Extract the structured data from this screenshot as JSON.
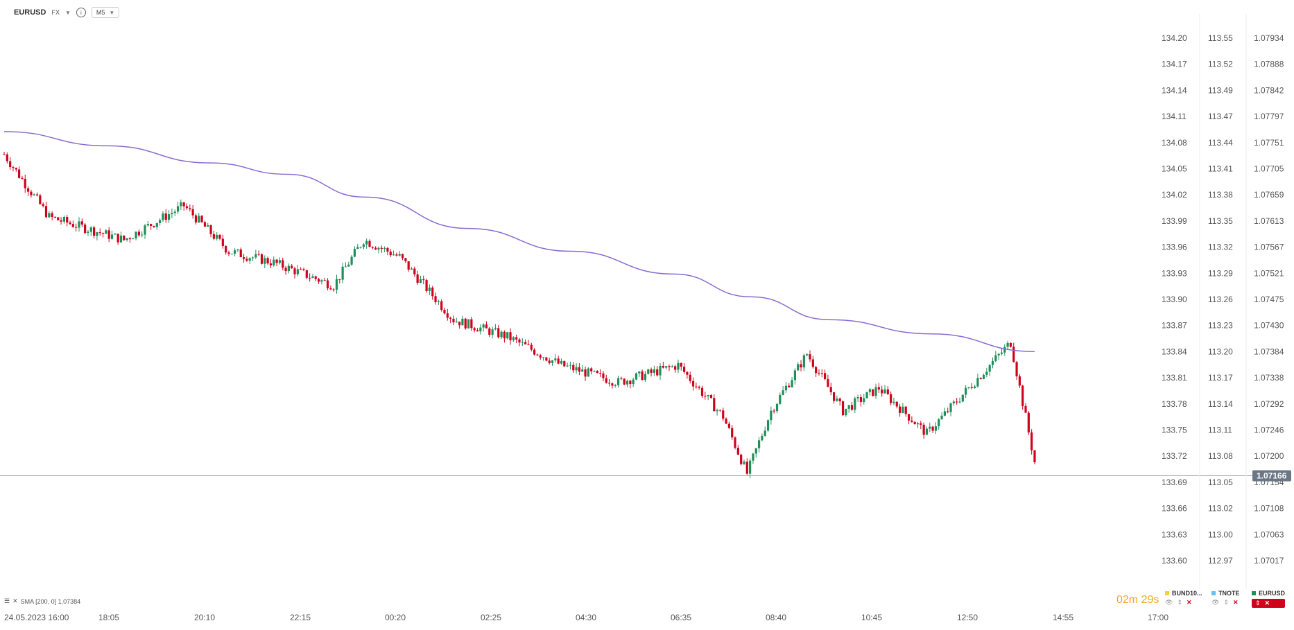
{
  "header": {
    "symbol": "EURUSD",
    "market": "FX",
    "timeframe": "M5"
  },
  "indicator": {
    "legend": "SMA [200, 0] 1.07384"
  },
  "timer": {
    "minutes": "02",
    "seconds": "29"
  },
  "price_tag": "1.07166",
  "colors": {
    "up": "#1e8f5a",
    "down": "#d0021b",
    "sma": "#8a6bd1",
    "price_line": "#999999",
    "timer": "#f5a623"
  },
  "instruments": [
    {
      "name": "BUND10...",
      "color": "#f5d328"
    },
    {
      "name": "TNOTE",
      "color": "#5fc3f5"
    },
    {
      "name": "EURUSD",
      "color": "#1e8f5a",
      "active": true
    }
  ],
  "chart_data": {
    "type": "candlestick",
    "x_ticks": [
      "24.05.2023  16:00",
      "18:05",
      "20:10",
      "22:15",
      "00:20",
      "02:25",
      "04:30",
      "06:35",
      "08:40",
      "10:45",
      "12:50",
      "14:55",
      "17:00"
    ],
    "y_axis_1": [
      "134.20",
      "134.17",
      "134.14",
      "134.11",
      "134.08",
      "134.05",
      "134.02",
      "133.99",
      "133.96",
      "133.93",
      "133.90",
      "133.87",
      "133.84",
      "133.81",
      "133.78",
      "133.75",
      "133.72",
      "133.69",
      "133.66",
      "133.63",
      "133.60"
    ],
    "y_axis_2": [
      "113.55",
      "113.52",
      "113.49",
      "113.47",
      "113.44",
      "113.41",
      "113.38",
      "113.35",
      "113.32",
      "113.29",
      "113.26",
      "113.23",
      "113.20",
      "113.17",
      "113.14",
      "113.11",
      "113.08",
      "113.05",
      "113.02",
      "113.00",
      "112.97"
    ],
    "y_axis_3": [
      "1.07934",
      "1.07888",
      "1.07842",
      "1.07797",
      "1.07751",
      "1.07705",
      "1.07659",
      "1.07613",
      "1.07567",
      "1.07521",
      "1.07475",
      "1.07430",
      "1.07384",
      "1.07338",
      "1.07292",
      "1.07246",
      "1.07200",
      "1.07154",
      "1.07108",
      "1.07063",
      "1.07017"
    ],
    "ylim": [
      1.07017,
      1.07934
    ],
    "current_price": 1.07166,
    "sma_200": [
      [
        0,
        1.0777
      ],
      [
        20,
        1.07745
      ],
      [
        40,
        1.07715
      ],
      [
        55,
        1.07695
      ],
      [
        70,
        1.07655
      ],
      [
        90,
        1.076
      ],
      [
        110,
        1.0756
      ],
      [
        130,
        1.0752
      ],
      [
        145,
        1.0748
      ],
      [
        160,
        1.0744
      ],
      [
        180,
        1.07415
      ],
      [
        200,
        1.07384
      ]
    ],
    "candles_ohlc_sample": "rendered from generated series"
  }
}
